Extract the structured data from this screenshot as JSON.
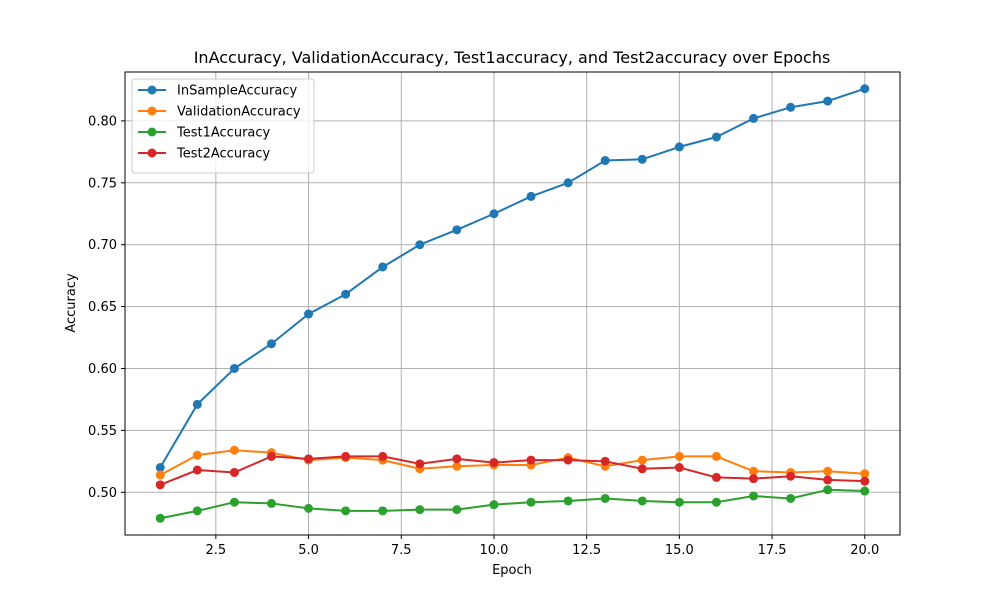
{
  "chart_data": {
    "type": "line",
    "title": "InAccuracy, ValidationAccuracy, Test1accuracy, and Test2accuracy over Epochs",
    "xlabel": "Epoch",
    "ylabel": "Accuracy",
    "xlim": [
      0.05,
      20.95
    ],
    "ylim": [
      0.4655,
      0.8395
    ],
    "xticks": [
      2.5,
      5.0,
      7.5,
      10.0,
      12.5,
      15.0,
      17.5,
      20.0
    ],
    "xtick_labels": [
      "2.5",
      "5.0",
      "7.5",
      "10.0",
      "12.5",
      "15.0",
      "17.5",
      "20.0"
    ],
    "yticks": [
      0.5,
      0.55,
      0.6,
      0.65,
      0.7,
      0.75,
      0.8
    ],
    "ytick_labels": [
      "0.50",
      "0.55",
      "0.60",
      "0.65",
      "0.70",
      "0.75",
      "0.80"
    ],
    "grid": true,
    "legend_position": "top-left",
    "x": [
      1,
      2,
      3,
      4,
      5,
      6,
      7,
      8,
      9,
      10,
      11,
      12,
      13,
      14,
      15,
      16,
      17,
      18,
      19,
      20
    ],
    "series": [
      {
        "name": "InSampleAccuracy",
        "color": "#1f77b4",
        "values": [
          0.52,
          0.571,
          0.6,
          0.62,
          0.644,
          0.66,
          0.682,
          0.7,
          0.712,
          0.725,
          0.739,
          0.75,
          0.768,
          0.769,
          0.779,
          0.787,
          0.802,
          0.811,
          0.816,
          0.826
        ]
      },
      {
        "name": "ValidationAccuracy",
        "color": "#ff7f0e",
        "values": [
          0.514,
          0.53,
          0.534,
          0.532,
          0.526,
          0.528,
          0.526,
          0.519,
          0.521,
          0.522,
          0.522,
          0.528,
          0.521,
          0.526,
          0.529,
          0.529,
          0.517,
          0.516,
          0.517,
          0.515
        ]
      },
      {
        "name": "Test1Accuracy",
        "color": "#2ca02c",
        "values": [
          0.479,
          0.485,
          0.492,
          0.491,
          0.487,
          0.485,
          0.485,
          0.486,
          0.486,
          0.49,
          0.492,
          0.493,
          0.495,
          0.493,
          0.492,
          0.492,
          0.497,
          0.495,
          0.502,
          0.501
        ]
      },
      {
        "name": "Test2Accuracy",
        "color": "#d62728",
        "values": [
          0.506,
          0.518,
          0.516,
          0.529,
          0.527,
          0.529,
          0.529,
          0.523,
          0.527,
          0.524,
          0.526,
          0.526,
          0.525,
          0.519,
          0.52,
          0.512,
          0.511,
          0.513,
          0.51,
          0.509
        ]
      }
    ]
  }
}
